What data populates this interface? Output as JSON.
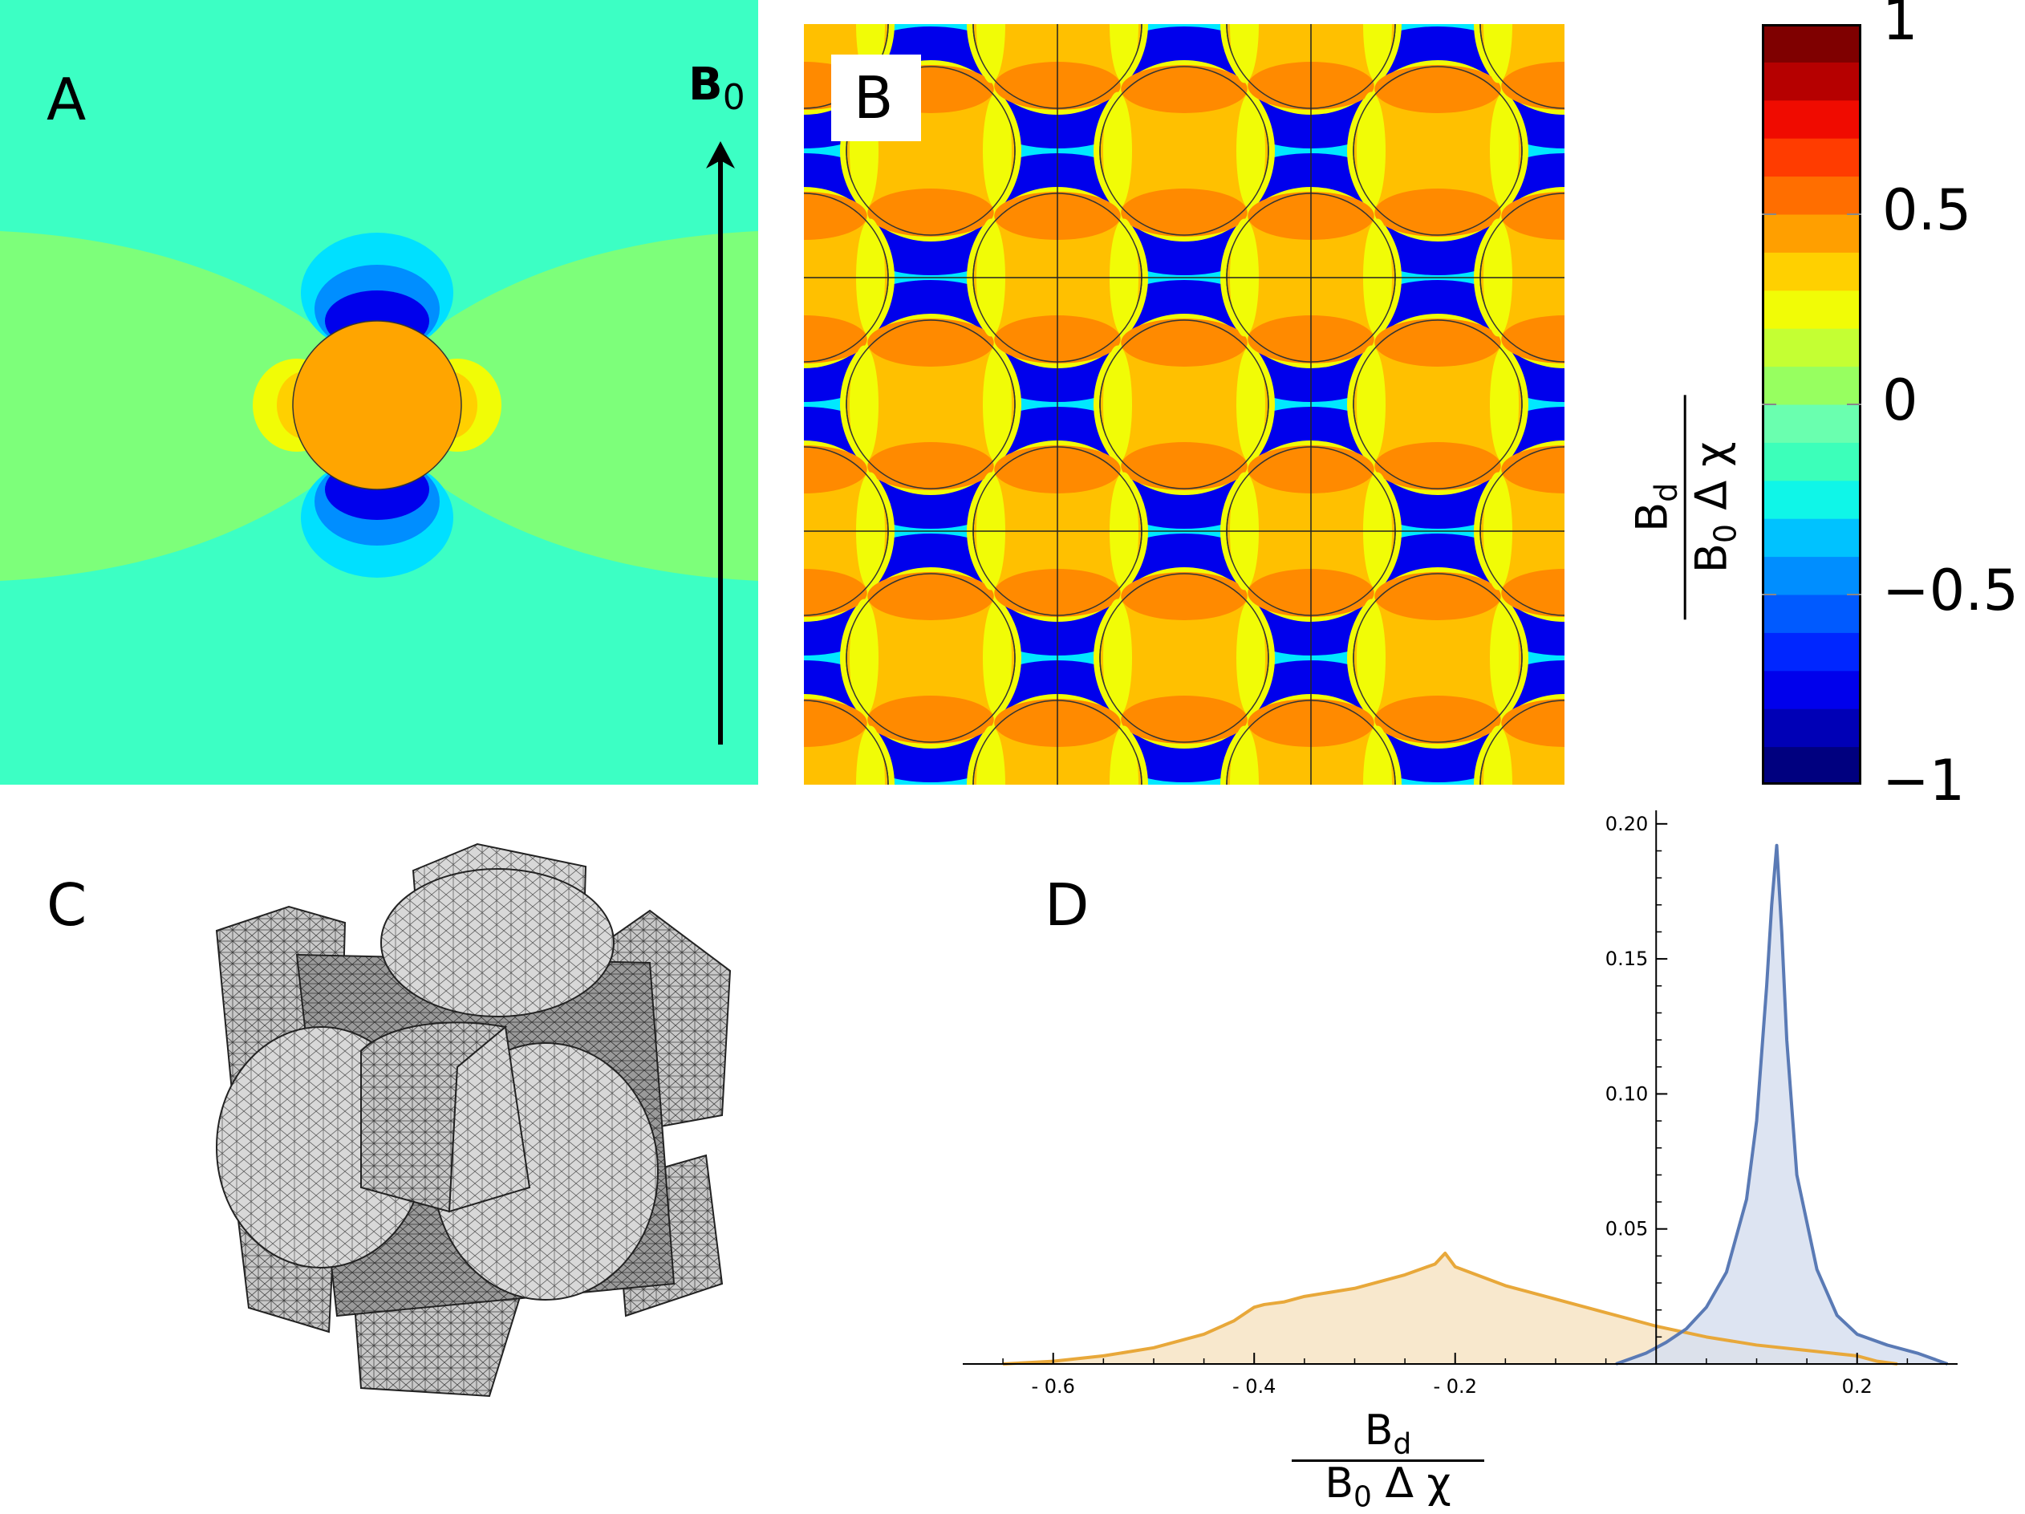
{
  "panels": {
    "a": {
      "letter": "A",
      "field_label": "B",
      "field_subscript": "0"
    },
    "b": {
      "letter": "B"
    },
    "c": {
      "letter": "C"
    },
    "d": {
      "letter": "D"
    }
  },
  "colorbar": {
    "ticks": [
      {
        "value": 1,
        "label": "1"
      },
      {
        "value": 0.5,
        "label": "0.5"
      },
      {
        "value": 0,
        "label": "0"
      },
      {
        "value": -0.5,
        "label": "−0.5"
      },
      {
        "value": -1,
        "label": "−1"
      }
    ],
    "label_numerator": "B",
    "label_numerator_sub": "d",
    "label_denominator": "B",
    "label_denominator_sub": "0",
    "label_denominator_rest": " Δ χ",
    "colormap": [
      "#00007f",
      "#0000b6",
      "#0000ec",
      "#0026ff",
      "#005aff",
      "#008eff",
      "#00c2ff",
      "#0ff6e8",
      "#3cffba",
      "#6affaf",
      "#97ff60",
      "#c4ff33",
      "#f1fc06",
      "#ffd000",
      "#ff9f00",
      "#ff6e00",
      "#ff3c00",
      "#f00b00",
      "#b60000",
      "#7f0000"
    ]
  },
  "chart_data": {
    "type": "area",
    "x_ticks": [
      -0.6,
      -0.4,
      -0.2,
      0.2
    ],
    "x_tick_labels": [
      "- 0.6",
      "- 0.4",
      "- 0.2",
      "0.2"
    ],
    "y_ticks": [
      0.05,
      0.1,
      0.15,
      0.2
    ],
    "y_tick_labels": [
      "0.05",
      "0.10",
      "0.15",
      "0.20"
    ],
    "xlim": [
      -0.69,
      0.3
    ],
    "ylim": [
      0,
      0.205
    ],
    "xlabel_numerator": "B",
    "xlabel_numerator_sub": "d",
    "xlabel_denominator": "B",
    "xlabel_denominator_sub": "0",
    "xlabel_denominator_rest": " Δ χ",
    "series": [
      {
        "color": "#e8a83a",
        "fill": "#f7e4c4",
        "x": [
          -0.65,
          -0.6,
          -0.55,
          -0.5,
          -0.45,
          -0.42,
          -0.4,
          -0.39,
          -0.37,
          -0.35,
          -0.3,
          -0.25,
          -0.22,
          -0.21,
          -0.2,
          -0.15,
          -0.1,
          -0.05,
          0.0,
          0.05,
          0.1,
          0.15,
          0.2,
          0.22,
          0.24
        ],
        "y": [
          0.0,
          0.001,
          0.003,
          0.006,
          0.011,
          0.016,
          0.021,
          0.022,
          0.023,
          0.025,
          0.028,
          0.033,
          0.037,
          0.041,
          0.036,
          0.029,
          0.024,
          0.019,
          0.014,
          0.01,
          0.007,
          0.005,
          0.003,
          0.001,
          0.0
        ]
      },
      {
        "color": "#5a7ab5",
        "fill": "#d7dff0",
        "x": [
          -0.04,
          -0.01,
          0.01,
          0.03,
          0.05,
          0.07,
          0.09,
          0.1,
          0.11,
          0.115,
          0.12,
          0.125,
          0.13,
          0.14,
          0.16,
          0.18,
          0.2,
          0.23,
          0.26,
          0.29
        ],
        "y": [
          0.0,
          0.004,
          0.008,
          0.013,
          0.021,
          0.034,
          0.061,
          0.09,
          0.14,
          0.17,
          0.192,
          0.16,
          0.12,
          0.07,
          0.035,
          0.018,
          0.011,
          0.007,
          0.004,
          0.0
        ]
      }
    ]
  }
}
